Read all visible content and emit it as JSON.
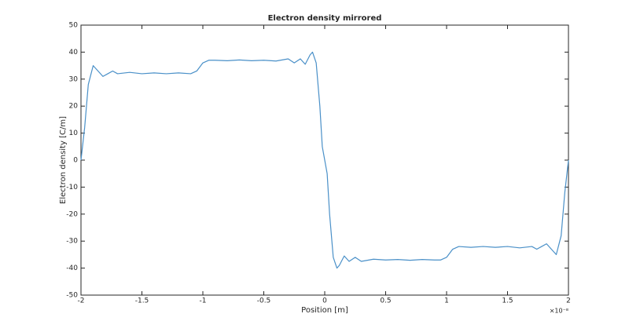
{
  "chart_data": {
    "type": "line",
    "title": "Electron density mirrored",
    "x_label": "Position [m]",
    "y_label": "Electron density [C/m]",
    "x_multiplier": "×10⁻⁸",
    "x": [
      -2,
      -1.97,
      -1.94,
      -1.9,
      -1.86,
      -1.82,
      -1.78,
      -1.74,
      -1.7,
      -1.6,
      -1.5,
      -1.4,
      -1.3,
      -1.2,
      -1.1,
      -1.05,
      -1,
      -0.95,
      -0.9,
      -0.8,
      -0.7,
      -0.6,
      -0.5,
      -0.4,
      -0.3,
      -0.25,
      -0.2,
      -0.16,
      -0.12,
      -0.1,
      -0.07,
      -0.04,
      -0.02,
      0,
      0.02,
      0.04,
      0.07,
      0.1,
      0.12,
      0.16,
      0.2,
      0.25,
      0.3,
      0.4,
      0.5,
      0.6,
      0.7,
      0.8,
      0.9,
      0.95,
      1,
      1.05,
      1.1,
      1.2,
      1.3,
      1.4,
      1.5,
      1.6,
      1.7,
      1.74,
      1.78,
      1.82,
      1.86,
      1.9,
      1.94,
      1.97,
      2
    ],
    "series": [
      {
        "color": "#4a90c8",
        "values": [
          0,
          12,
          28,
          35,
          33,
          31,
          32,
          33,
          32,
          32.5,
          32,
          32.3,
          32,
          32.3,
          32,
          33,
          36,
          37,
          37,
          36.8,
          37.1,
          36.8,
          37,
          36.7,
          37.5,
          36,
          37.5,
          35.5,
          39,
          40,
          36,
          20,
          5,
          0,
          -5,
          -20,
          -36,
          -40,
          -39,
          -35.5,
          -37.5,
          -36,
          -37.5,
          -36.7,
          -37,
          -36.8,
          -37.1,
          -36.8,
          -37,
          -37,
          -36,
          -33,
          -32,
          -32.3,
          -32,
          -32.3,
          -32,
          -32.5,
          -32,
          -33,
          -32,
          -31,
          -33,
          -35,
          -28,
          -12,
          0
        ]
      }
    ],
    "xlim": [
      -2,
      2
    ],
    "xticks": [
      -2,
      -1.5,
      -1,
      -0.5,
      0,
      0.5,
      1,
      1.5,
      2
    ],
    "ylim": [
      -50,
      50
    ],
    "yticks": [
      -50,
      -40,
      -30,
      -20,
      -10,
      0,
      10,
      20,
      30,
      40,
      50
    ],
    "grid": false
  }
}
